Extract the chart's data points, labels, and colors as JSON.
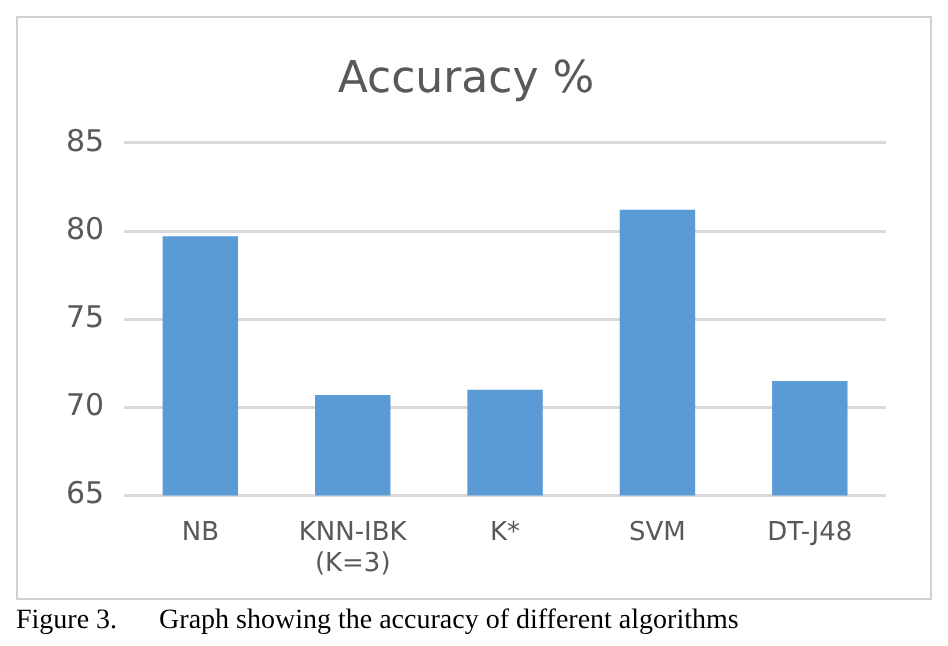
{
  "chart_data": {
    "type": "bar",
    "title": "Accuracy %",
    "categories": [
      "NB",
      "KNN-IBK (K=3)",
      "K*",
      "SVM",
      "DT-J48"
    ],
    "values": [
      79.7,
      70.7,
      71.0,
      81.2,
      71.5
    ],
    "color": "#5b9bd5",
    "ylim": [
      65,
      85
    ],
    "yticks": [
      65,
      70,
      75,
      80,
      85
    ],
    "grid": "y",
    "annotations": [
      "Figure 3.      Graph showing the accuracy of different algorithms"
    ]
  }
}
